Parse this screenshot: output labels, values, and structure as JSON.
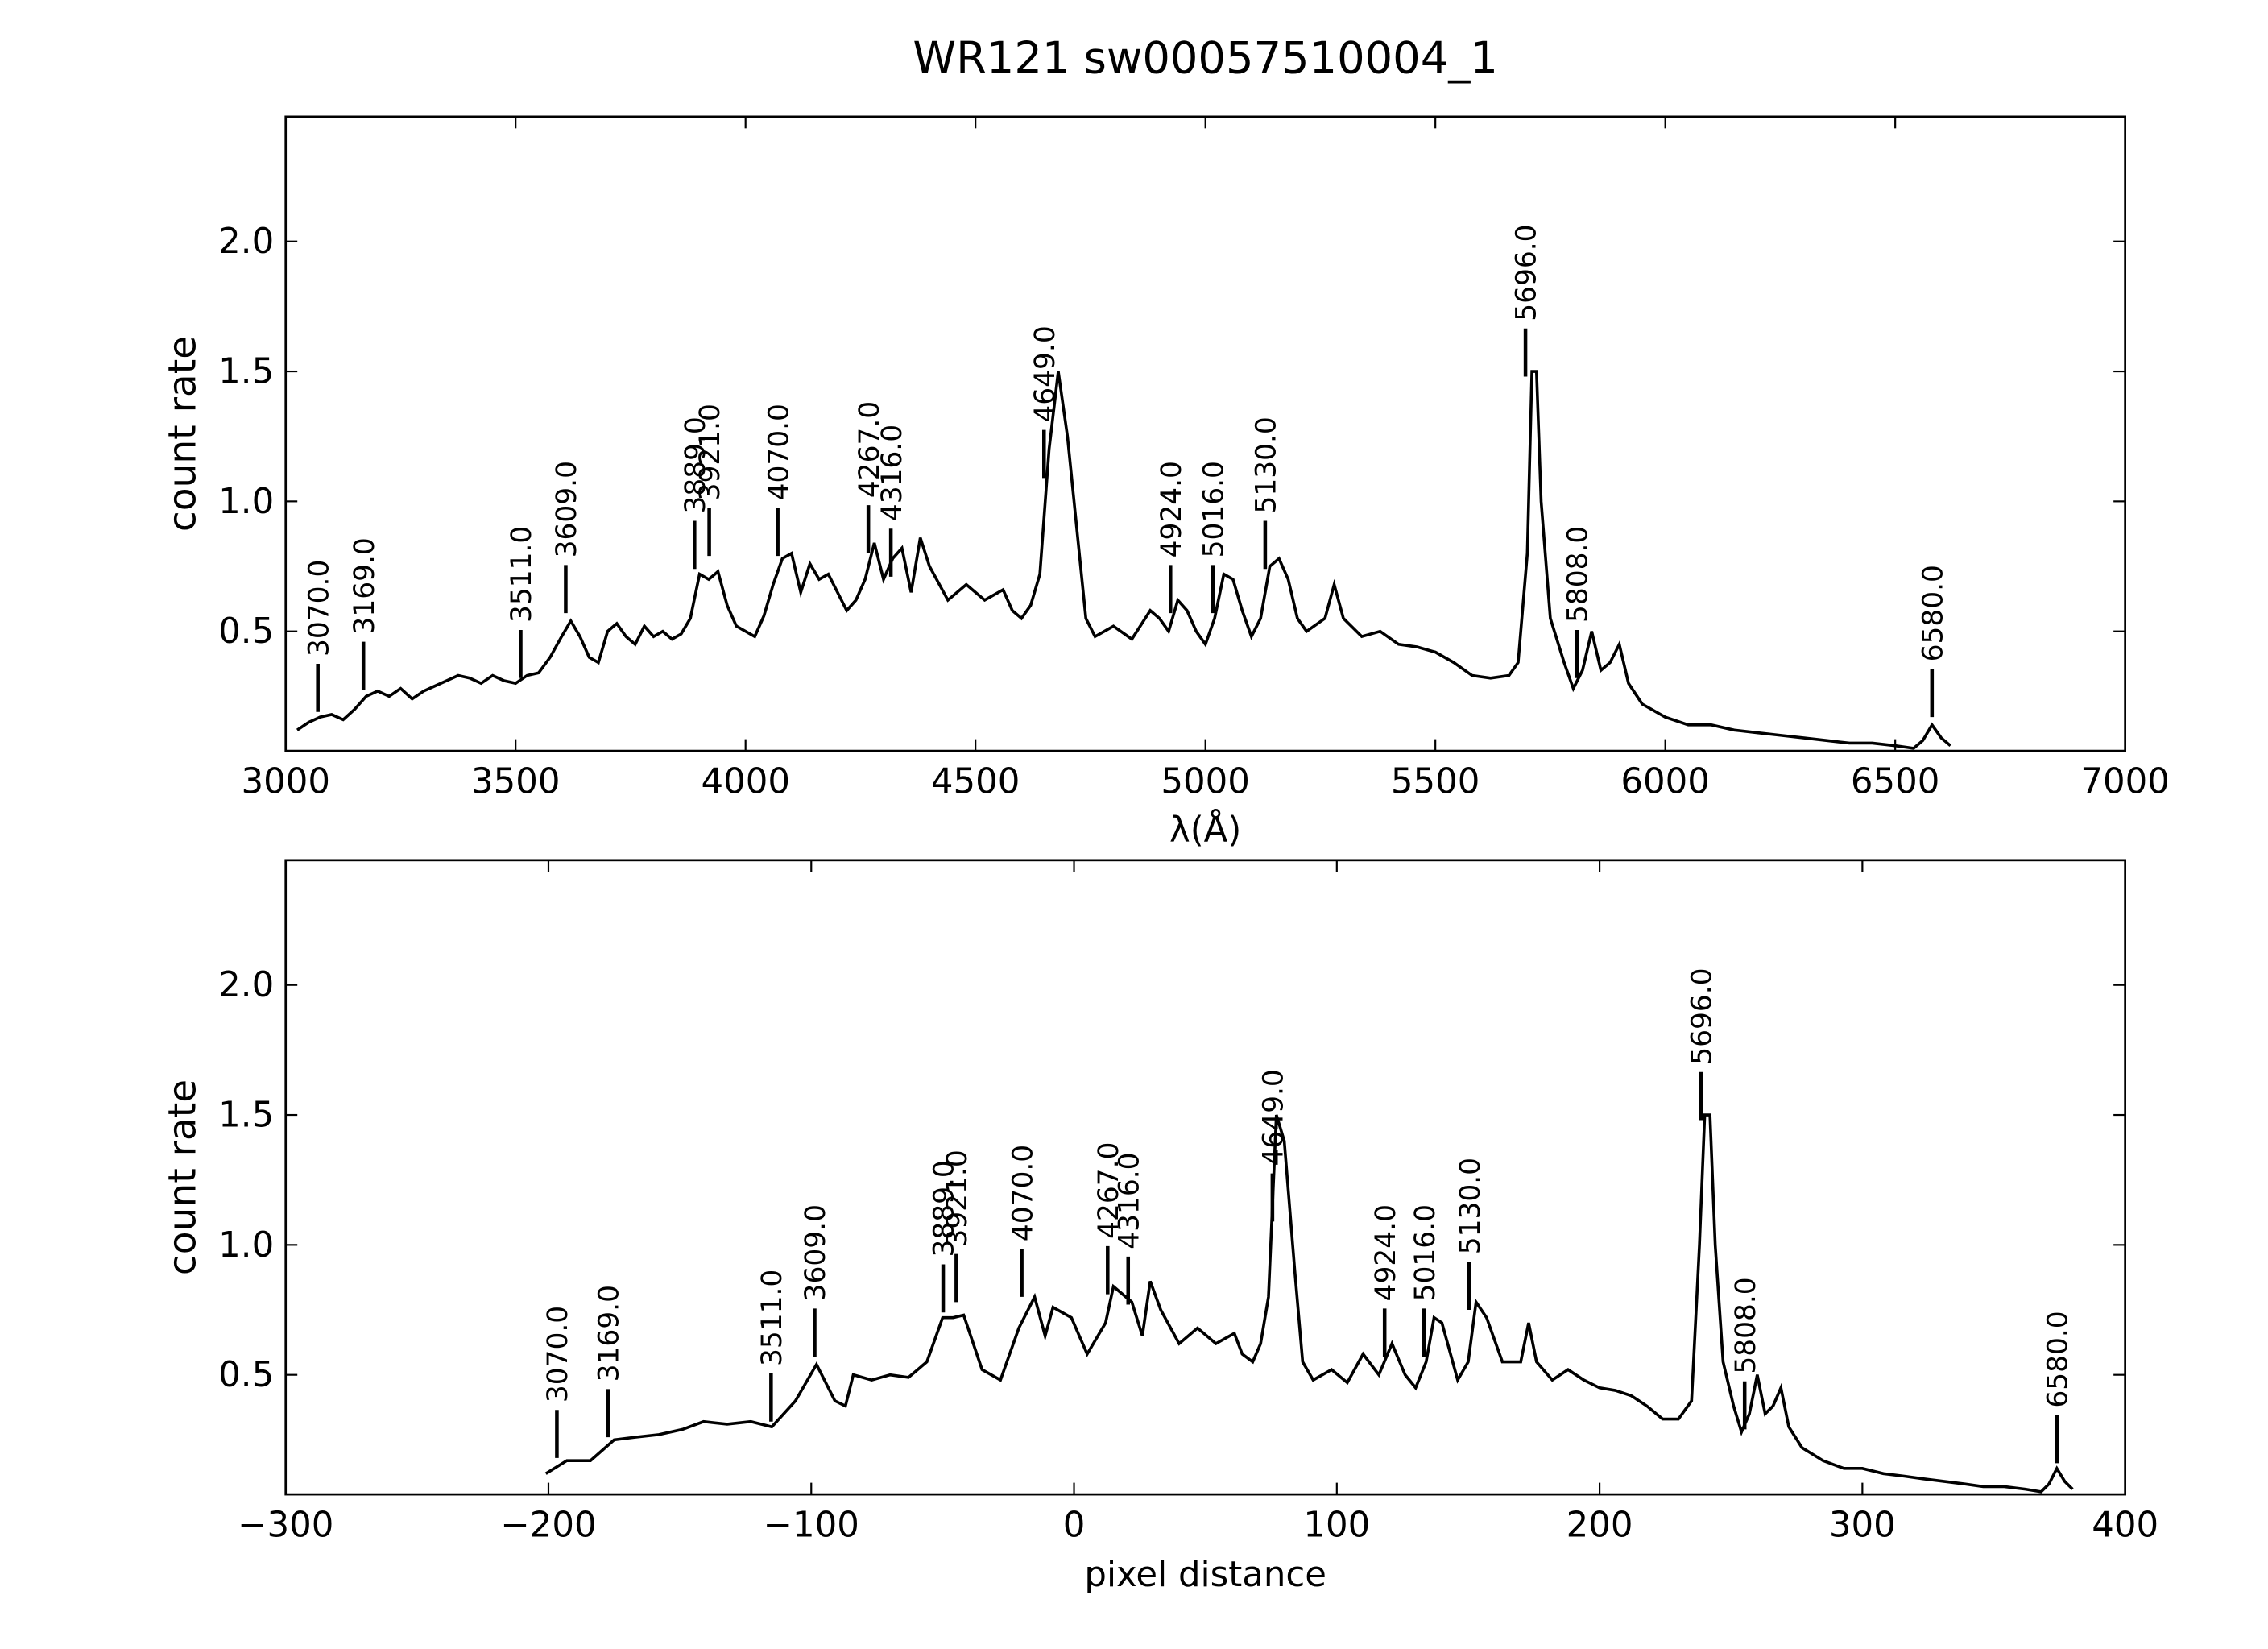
{
  "chart_data": [
    {
      "type": "line",
      "title": "WR121  sw00057510004_1",
      "xlabel": "λ(Å)",
      "ylabel": "count rate",
      "color": "#000000",
      "xlim": [
        3000,
        7000
      ],
      "xticks": [
        3000,
        3500,
        4000,
        4500,
        5000,
        5500,
        6000,
        6500,
        7000
      ],
      "ylim": [
        0.04,
        2.48
      ],
      "yticks": [
        0.5,
        {
          "value": 1.0,
          "label": "1.0"
        },
        1.5,
        {
          "value": 2.0,
          "label": "2.0"
        }
      ],
      "x": [
        3025,
        3050,
        3075,
        3100,
        3125,
        3150,
        3175,
        3200,
        3225,
        3250,
        3275,
        3300,
        3325,
        3350,
        3375,
        3400,
        3425,
        3450,
        3475,
        3500,
        3525,
        3550,
        3575,
        3600,
        3620,
        3640,
        3660,
        3680,
        3700,
        3720,
        3740,
        3760,
        3780,
        3800,
        3820,
        3840,
        3860,
        3880,
        3900,
        3920,
        3940,
        3960,
        3980,
        4000,
        4020,
        4040,
        4060,
        4080,
        4100,
        4120,
        4140,
        4160,
        4180,
        4200,
        4220,
        4240,
        4260,
        4280,
        4300,
        4320,
        4340,
        4360,
        4380,
        4400,
        4440,
        4480,
        4520,
        4560,
        4580,
        4600,
        4620,
        4640,
        4660,
        4680,
        4700,
        4720,
        4740,
        4760,
        4800,
        4840,
        4880,
        4900,
        4920,
        4940,
        4960,
        4980,
        5000,
        5020,
        5040,
        5060,
        5080,
        5100,
        5120,
        5140,
        5160,
        5180,
        5200,
        5220,
        5260,
        5280,
        5300,
        5340,
        5380,
        5420,
        5460,
        5500,
        5540,
        5580,
        5620,
        5660,
        5680,
        5700,
        5710,
        5720,
        5730,
        5750,
        5780,
        5800,
        5820,
        5840,
        5860,
        5880,
        5900,
        5920,
        5950,
        6000,
        6050,
        6100,
        6150,
        6200,
        6250,
        6300,
        6350,
        6400,
        6450,
        6500,
        6540,
        6560,
        6580,
        6600,
        6620
      ],
      "values": [
        0.12,
        0.15,
        0.17,
        0.18,
        0.16,
        0.2,
        0.25,
        0.27,
        0.25,
        0.28,
        0.24,
        0.27,
        0.29,
        0.31,
        0.33,
        0.32,
        0.3,
        0.33,
        0.31,
        0.3,
        0.33,
        0.34,
        0.4,
        0.48,
        0.54,
        0.48,
        0.4,
        0.38,
        0.5,
        0.53,
        0.48,
        0.45,
        0.52,
        0.48,
        0.5,
        0.47,
        0.49,
        0.55,
        0.72,
        0.7,
        0.73,
        0.6,
        0.52,
        0.5,
        0.48,
        0.56,
        0.68,
        0.78,
        0.8,
        0.65,
        0.76,
        0.7,
        0.72,
        0.65,
        0.58,
        0.62,
        0.7,
        0.84,
        0.7,
        0.78,
        0.82,
        0.65,
        0.86,
        0.75,
        0.62,
        0.68,
        0.62,
        0.66,
        0.58,
        0.55,
        0.6,
        0.72,
        1.2,
        1.5,
        1.25,
        0.9,
        0.55,
        0.48,
        0.52,
        0.47,
        0.58,
        0.55,
        0.5,
        0.62,
        0.58,
        0.5,
        0.45,
        0.55,
        0.72,
        0.7,
        0.58,
        0.48,
        0.55,
        0.75,
        0.78,
        0.7,
        0.55,
        0.5,
        0.55,
        0.68,
        0.55,
        0.48,
        0.5,
        0.45,
        0.44,
        0.42,
        0.38,
        0.33,
        0.32,
        0.33,
        0.38,
        0.8,
        1.5,
        1.5,
        1.0,
        0.55,
        0.38,
        0.28,
        0.35,
        0.5,
        0.35,
        0.38,
        0.45,
        0.3,
        0.22,
        0.17,
        0.14,
        0.14,
        0.12,
        0.11,
        0.1,
        0.09,
        0.08,
        0.07,
        0.07,
        0.06,
        0.05,
        0.08,
        0.14,
        0.09,
        0.06
      ],
      "annotations": [
        {
          "label": "3070.0",
          "x": 3070,
          "y": 0.19
        },
        {
          "label": "3169.0",
          "x": 3169,
          "y": 0.275
        },
        {
          "label": "3511.0",
          "x": 3511,
          "y": 0.32
        },
        {
          "label": "3609.0",
          "x": 3609,
          "y": 0.57
        },
        {
          "label": "3889.0",
          "x": 3889,
          "y": 0.74
        },
        {
          "label": "3921.0",
          "x": 3921,
          "y": 0.79
        },
        {
          "label": "4070.0",
          "x": 4070,
          "y": 0.79
        },
        {
          "label": "4267.0",
          "x": 4267,
          "y": 0.8
        },
        {
          "label": "4316.0",
          "x": 4316,
          "y": 0.71
        },
        {
          "label": "4649.0",
          "x": 4649,
          "y": 1.09
        },
        {
          "label": "4924.0",
          "x": 4924,
          "y": 0.57
        },
        {
          "label": "5016.0",
          "x": 5016,
          "y": 0.57
        },
        {
          "label": "5130.0",
          "x": 5130,
          "y": 0.74
        },
        {
          "label": "5696.0",
          "x": 5696,
          "y": 1.48
        },
        {
          "label": "5808.0",
          "x": 5808,
          "y": 0.32
        },
        {
          "label": "6580.0",
          "x": 6580,
          "y": 0.17
        }
      ]
    },
    {
      "type": "line",
      "xlabel": "pixel distance",
      "ylabel": "count rate",
      "color": "#000000",
      "xlim": [
        -300,
        400
      ],
      "xticks": [
        {
          "value": -300,
          "label": "−300"
        },
        {
          "value": -200,
          "label": "−200"
        },
        {
          "value": -100,
          "label": "−100"
        },
        0,
        100,
        200,
        300,
        400
      ],
      "ylim": [
        0.04,
        2.48
      ],
      "yticks": [
        0.5,
        {
          "value": 1.0,
          "label": "1.0"
        },
        1.5,
        {
          "value": 2.0,
          "label": "2.0"
        }
      ],
      "x": [
        -201,
        -193,
        -184,
        -175,
        -167,
        -158,
        -149,
        -141,
        -132,
        -123,
        -115,
        -106,
        -98,
        -91,
        -87,
        -84,
        -77,
        -70,
        -63,
        -56,
        -50,
        -46,
        -42,
        -35,
        -28,
        -21,
        -15,
        -11,
        -8,
        -1,
        5,
        12,
        15,
        22,
        26,
        29,
        33,
        40,
        47,
        54,
        61,
        64,
        68,
        71,
        74,
        77,
        80,
        84,
        87,
        91,
        98,
        104,
        110,
        116,
        121,
        126,
        130,
        134,
        137,
        140,
        146,
        150,
        153,
        157,
        163,
        170,
        173,
        176,
        182,
        188,
        194,
        200,
        206,
        212,
        218,
        224,
        230,
        235,
        238,
        240,
        242,
        244,
        247,
        251,
        254,
        257,
        260,
        263,
        266,
        269,
        272,
        277,
        285,
        293,
        300,
        308,
        316,
        323,
        331,
        339,
        346,
        354,
        362,
        368,
        371,
        374,
        377,
        380
      ],
      "values": [
        0.12,
        0.17,
        0.17,
        0.25,
        0.26,
        0.27,
        0.29,
        0.32,
        0.31,
        0.32,
        0.3,
        0.4,
        0.54,
        0.4,
        0.38,
        0.5,
        0.48,
        0.5,
        0.49,
        0.55,
        0.72,
        0.72,
        0.73,
        0.52,
        0.48,
        0.68,
        0.8,
        0.65,
        0.76,
        0.72,
        0.58,
        0.7,
        0.84,
        0.78,
        0.65,
        0.86,
        0.75,
        0.62,
        0.68,
        0.62,
        0.66,
        0.58,
        0.55,
        0.62,
        0.8,
        1.5,
        1.4,
        0.9,
        0.55,
        0.48,
        0.52,
        0.47,
        0.58,
        0.5,
        0.62,
        0.5,
        0.45,
        0.55,
        0.72,
        0.7,
        0.48,
        0.55,
        0.78,
        0.72,
        0.55,
        0.55,
        0.7,
        0.55,
        0.48,
        0.52,
        0.48,
        0.45,
        0.44,
        0.42,
        0.38,
        0.33,
        0.33,
        0.4,
        1.0,
        1.5,
        1.5,
        1.0,
        0.55,
        0.38,
        0.28,
        0.35,
        0.5,
        0.35,
        0.38,
        0.45,
        0.3,
        0.22,
        0.17,
        0.14,
        0.14,
        0.12,
        0.11,
        0.1,
        0.09,
        0.08,
        0.07,
        0.07,
        0.06,
        0.05,
        0.08,
        0.14,
        0.09,
        0.06
      ],
      "annotations": [
        {
          "label": "3070.0",
          "x": -196.8,
          "y": 0.18
        },
        {
          "label": "3169.0",
          "x": -177.4,
          "y": 0.26
        },
        {
          "label": "3511.0",
          "x": -115.3,
          "y": 0.32
        },
        {
          "label": "3609.0",
          "x": -98.7,
          "y": 0.57
        },
        {
          "label": "3889.0",
          "x": -49.8,
          "y": 0.74
        },
        {
          "label": "3921.0",
          "x": -44.8,
          "y": 0.78
        },
        {
          "label": "4070.0",
          "x": -19.9,
          "y": 0.8
        },
        {
          "label": "4267.0",
          "x": 12.8,
          "y": 0.81
        },
        {
          "label": "4316.0",
          "x": 20.6,
          "y": 0.77
        },
        {
          "label": "4649.0",
          "x": 75.5,
          "y": 1.09
        },
        {
          "label": "4924.0",
          "x": 118.2,
          "y": 0.57
        },
        {
          "label": "5016.0",
          "x": 133.2,
          "y": 0.57
        },
        {
          "label": "5130.0",
          "x": 150.4,
          "y": 0.75
        },
        {
          "label": "5696.0",
          "x": 238.6,
          "y": 1.48
        },
        {
          "label": "5808.0",
          "x": 255.2,
          "y": 0.29
        },
        {
          "label": "6580.0",
          "x": 374,
          "y": 0.16
        }
      ]
    }
  ]
}
